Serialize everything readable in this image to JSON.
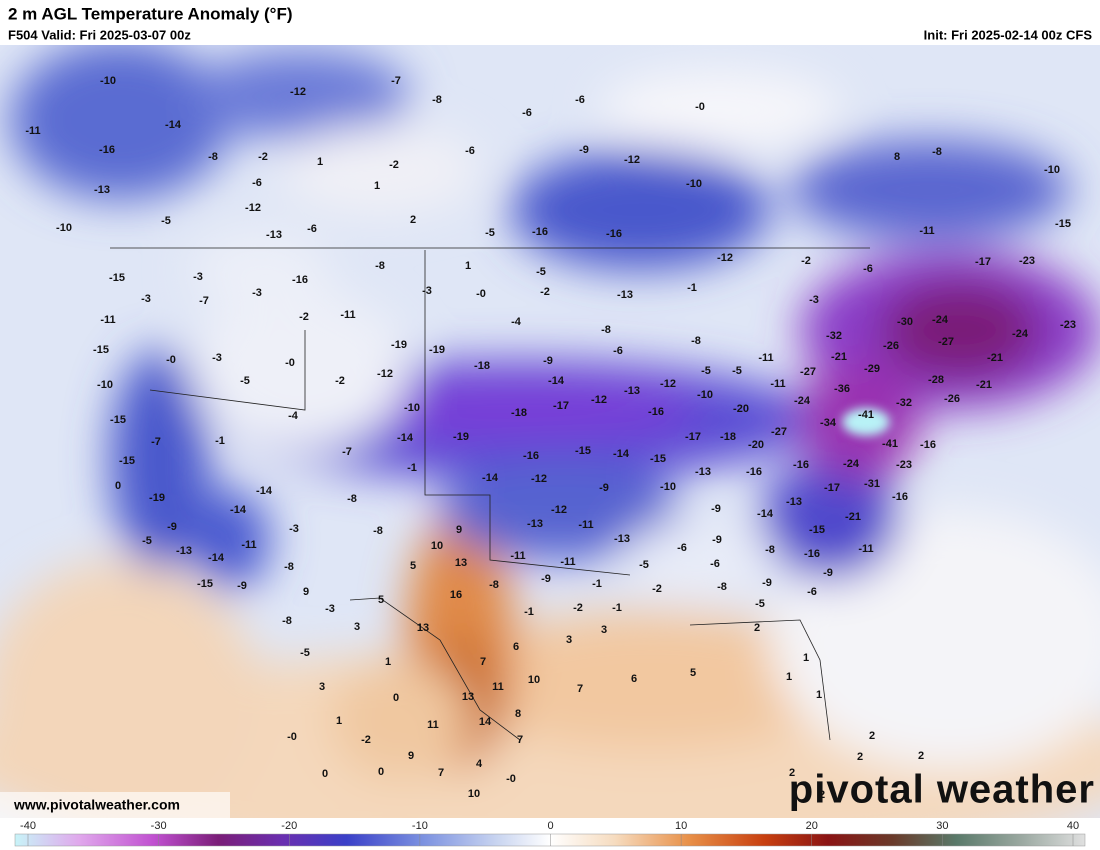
{
  "header": {
    "title": "2 m AGL Temperature Anomaly (°F)",
    "valid": "F504 Valid: Fri 2025-03-07 00z",
    "init": "Init: Fri 2025-02-14 00z CFS"
  },
  "footer": {
    "website": "www.pivotalweather.com",
    "logo": "pivotal weather"
  },
  "colorbar": {
    "lim": [
      -40,
      40
    ],
    "ticks": [
      -40,
      -30,
      -20,
      -10,
      0,
      10,
      20,
      30,
      40
    ]
  },
  "map_labels": [
    -10,
    -11,
    -16,
    -14,
    -13,
    -12,
    -7,
    -8,
    -6,
    -6,
    -6,
    -9,
    -12,
    "-0",
    -10,
    -8,
    -2,
    1,
    -2,
    -6,
    1,
    -12,
    2,
    -5,
    -13,
    -6,
    -10,
    -5,
    -16,
    -16,
    -12,
    -2,
    -6,
    8,
    -8,
    -10,
    -11,
    -17,
    -23,
    -15,
    -15,
    -3,
    -3,
    -7,
    -3,
    -16,
    -8,
    1,
    -5,
    -3,
    "-0",
    -2,
    -13,
    -1,
    -3,
    -11,
    -2,
    -11,
    -4,
    -8,
    -8,
    -15,
    "-0",
    -3,
    "-0",
    -19,
    -19,
    -6,
    -5,
    -2,
    -12,
    -18,
    -9,
    -14,
    -5,
    -5,
    -11,
    -32,
    -30,
    -24,
    -26,
    -27,
    -24,
    -23,
    -21,
    -21,
    -29,
    -27,
    -28,
    -21,
    -10,
    -11,
    -36,
    -32,
    -26,
    -4,
    -10,
    -18,
    -17,
    -12,
    -13,
    -12,
    -10,
    -20,
    -24,
    -15,
    -7,
    -1,
    -7,
    -14,
    -19,
    -16,
    -17,
    -18,
    -27,
    -34,
    -41,
    -16,
    -15,
    -1,
    -16,
    -15,
    -14,
    -15,
    -20,
    -13,
    -16,
    -16,
    -24,
    -41,
    -23,
    -14,
    0,
    -8,
    -14,
    -12,
    -9,
    -10,
    -17,
    -31,
    -16,
    -19,
    -14,
    -3,
    -8,
    9,
    -12,
    -13,
    -11,
    -13,
    -9,
    -14,
    -13,
    -21,
    -9,
    -5,
    -13,
    -14,
    -11,
    10,
    5,
    13,
    -11,
    -11,
    -5,
    -6,
    -9,
    -6,
    -8,
    -15,
    -11,
    -16,
    -9,
    -15,
    -9,
    -8,
    9,
    -8,
    -9,
    -1,
    -2,
    -8,
    -9,
    16,
    5,
    -3,
    -8,
    -1,
    -2,
    -1,
    -5,
    -6,
    13,
    3,
    3,
    3,
    2,
    -5,
    6,
    7,
    1,
    3,
    13,
    11,
    10,
    7,
    6,
    5,
    1,
    1,
    1,
    0,
    1,
    11,
    14,
    8,
    "-0",
    -2,
    7,
    2,
    9,
    4,
    0,
    0,
    7,
    "-0",
    2,
    2,
    2,
    10,
    2
  ]
}
